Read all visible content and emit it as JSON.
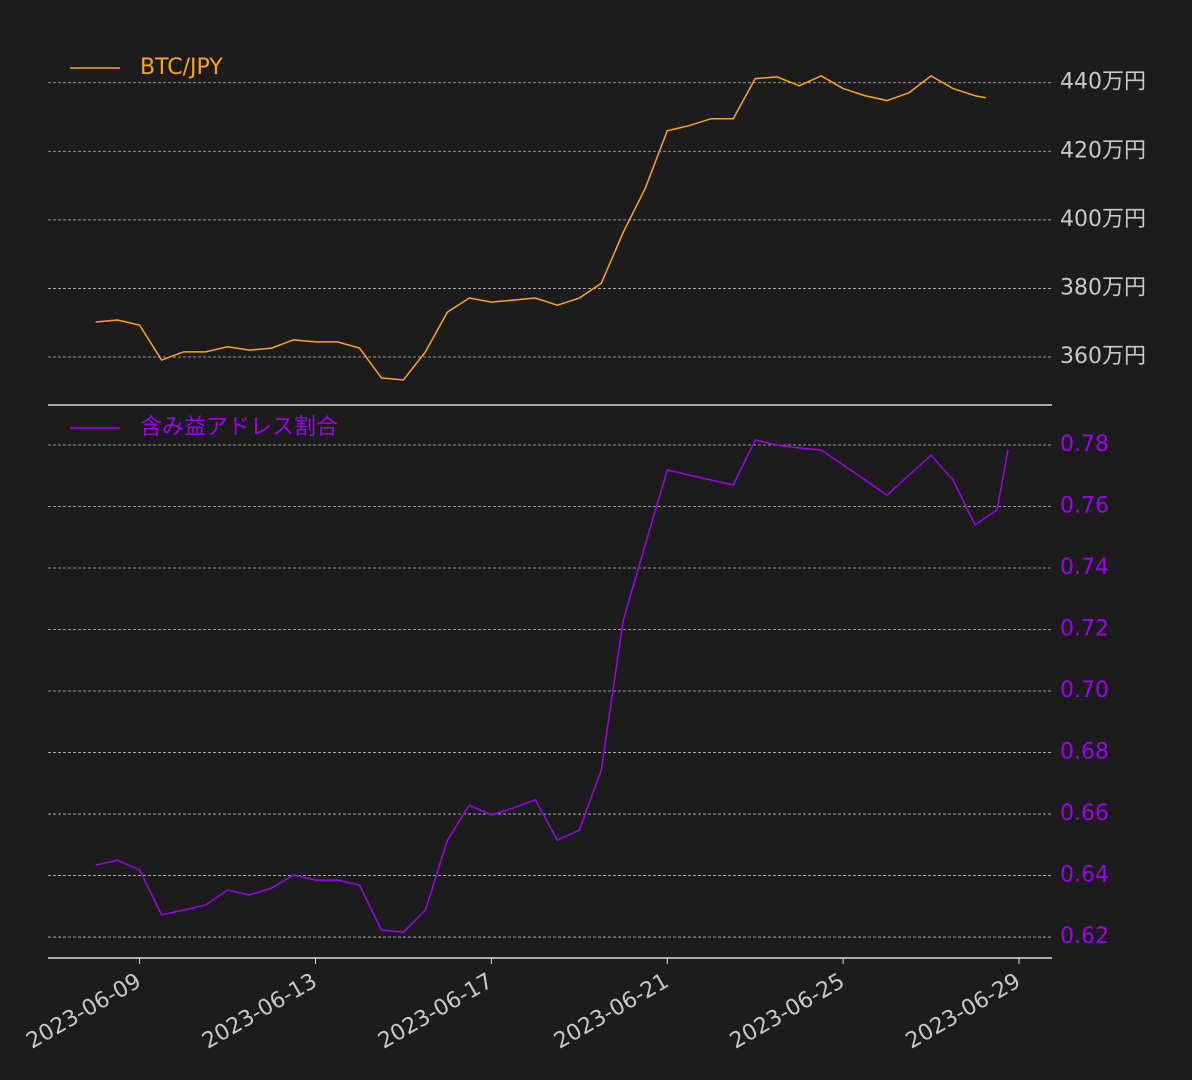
{
  "chart_data": [
    {
      "type": "line",
      "x": [
        "2023-06-08T00:00",
        "2023-06-08T12:00",
        "2023-06-09T00:00",
        "2023-06-09T12:00",
        "2023-06-10T00:00",
        "2023-06-10T12:00",
        "2023-06-11T00:00",
        "2023-06-11T12:00",
        "2023-06-12T00:00",
        "2023-06-12T12:00",
        "2023-06-13T00:00",
        "2023-06-13T12:00",
        "2023-06-14T00:00",
        "2023-06-14T12:00",
        "2023-06-15T00:00",
        "2023-06-15T12:00",
        "2023-06-16T00:00",
        "2023-06-16T12:00",
        "2023-06-17T00:00",
        "2023-06-17T12:00",
        "2023-06-18T00:00",
        "2023-06-18T12:00",
        "2023-06-19T00:00",
        "2023-06-19T12:00",
        "2023-06-20T00:00",
        "2023-06-20T12:00",
        "2023-06-21T00:00",
        "2023-06-21T12:00",
        "2023-06-22T00:00",
        "2023-06-22T12:00",
        "2023-06-23T00:00",
        "2023-06-23T12:00",
        "2023-06-24T00:00",
        "2023-06-24T12:00",
        "2023-06-25T00:00",
        "2023-06-25T12:00",
        "2023-06-26T00:00",
        "2023-06-26T12:00",
        "2023-06-27T00:00",
        "2023-06-27T12:00",
        "2023-06-28T00:00",
        "2023-06-28T06:00"
      ],
      "series": [
        {
          "name": "BTC/JPY",
          "color": "#ffa31a",
          "values": [
            3702000,
            3708000,
            3693000,
            3591000,
            3615000,
            3615000,
            3630000,
            3620000,
            3626000,
            3650000,
            3644000,
            3644000,
            3626000,
            3539000,
            3533000,
            3615000,
            3731000,
            3772000,
            3760000,
            3766000,
            3772000,
            3751000,
            3772000,
            3815000,
            3964000,
            4092000,
            4260000,
            4275000,
            4295000,
            4295000,
            4412000,
            4417000,
            4391000,
            4420000,
            4383000,
            4362000,
            4348000,
            4371000,
            4420000,
            4383000,
            4362000,
            4356000
          ]
        }
      ],
      "xlim": [
        "2023-06-06T22:00",
        "2023-06-29T18:00"
      ],
      "ylim": [
        3460000,
        4510000
      ],
      "yticks": [
        {
          "value": 3600000,
          "label": "360万円"
        },
        {
          "value": 3800000,
          "label": "380万円"
        },
        {
          "value": 4000000,
          "label": "400万円"
        },
        {
          "value": 4200000,
          "label": "420万円"
        },
        {
          "value": 4400000,
          "label": "440万円"
        }
      ],
      "grid": true,
      "legend": "upper left"
    },
    {
      "type": "line",
      "x": [
        "2023-06-08T00:00",
        "2023-06-08T12:00",
        "2023-06-09T00:00",
        "2023-06-09T12:00",
        "2023-06-10T00:00",
        "2023-06-10T12:00",
        "2023-06-11T00:00",
        "2023-06-11T12:00",
        "2023-06-12T00:00",
        "2023-06-12T12:00",
        "2023-06-13T00:00",
        "2023-06-13T12:00",
        "2023-06-14T00:00",
        "2023-06-14T12:00",
        "2023-06-15T00:00",
        "2023-06-15T12:00",
        "2023-06-16T00:00",
        "2023-06-16T12:00",
        "2023-06-17T00:00",
        "2023-06-17T12:00",
        "2023-06-18T00:00",
        "2023-06-18T12:00",
        "2023-06-19T00:00",
        "2023-06-19T12:00",
        "2023-06-20T00:00",
        "2023-06-20T12:00",
        "2023-06-21T00:00",
        "2023-06-21T12:00",
        "2023-06-22T00:00",
        "2023-06-22T12:00",
        "2023-06-23T00:00",
        "2023-06-23T12:00",
        "2023-06-24T00:00",
        "2023-06-24T12:00",
        "2023-06-25T00:00",
        "2023-06-25T12:00",
        "2023-06-26T00:00",
        "2023-06-26T12:00",
        "2023-06-27T00:00",
        "2023-06-27T12:00",
        "2023-06-28T00:00",
        "2023-06-28T12:00",
        "2023-06-28T18:00"
      ],
      "series": [
        {
          "name": "含み益アドレス割合",
          "color": "#a000f0",
          "values": [
            0.6434,
            0.645,
            0.6418,
            0.6272,
            0.6288,
            0.6304,
            0.6353,
            0.6337,
            0.6359,
            0.6402,
            0.6385,
            0.6385,
            0.6369,
            0.6223,
            0.6216,
            0.6288,
            0.6515,
            0.6629,
            0.6597,
            0.662,
            0.6646,
            0.6515,
            0.6548,
            0.6743,
            0.7231,
            0.7475,
            0.7719,
            0.7702,
            0.7686,
            0.767,
            0.7816,
            0.78,
            0.779,
            0.7784,
            0.7735,
            0.7686,
            0.7637,
            0.7702,
            0.7767,
            0.7686,
            0.754,
            0.7589,
            0.7784
          ]
        }
      ],
      "xlim": [
        "2023-06-06T22:00",
        "2023-06-29T18:00"
      ],
      "xticks": [
        "2023-06-09",
        "2023-06-13",
        "2023-06-17",
        "2023-06-21",
        "2023-06-25",
        "2023-06-29"
      ],
      "ylim": [
        0.6132,
        0.793
      ],
      "yticks": [
        0.62,
        0.64,
        0.66,
        0.68,
        {
          "value": 0.7,
          "label": "0.70"
        },
        0.72,
        0.74,
        0.76,
        0.78
      ],
      "grid": true,
      "legend": "upper left"
    }
  ]
}
